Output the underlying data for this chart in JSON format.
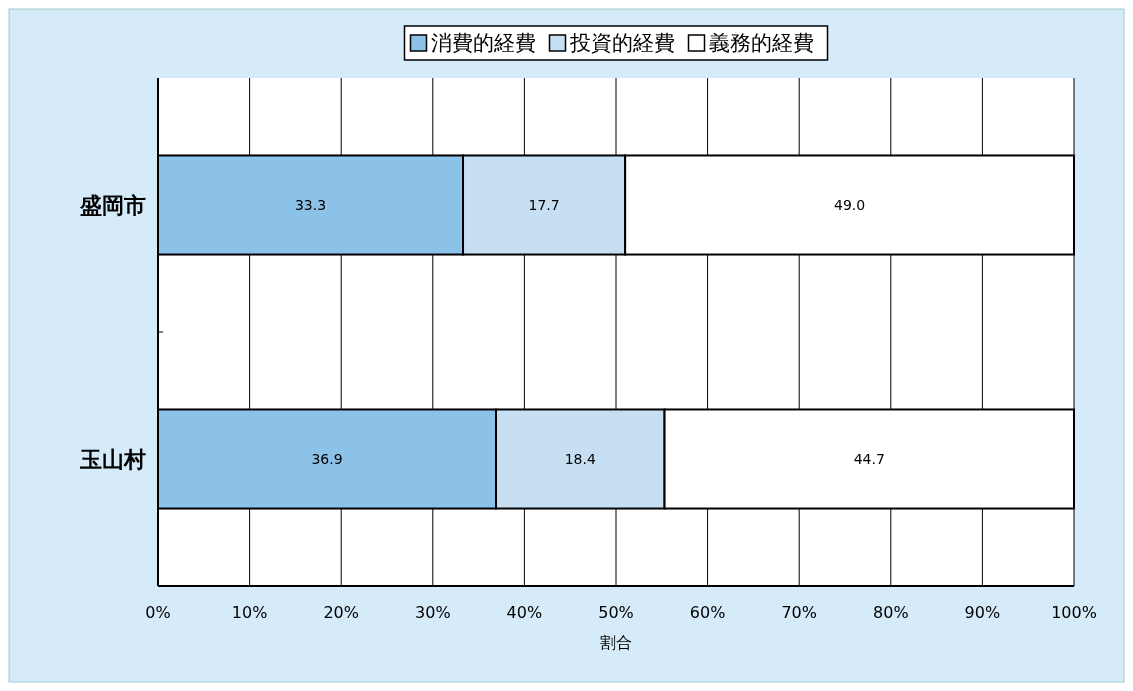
{
  "chart_data": {
    "type": "bar",
    "orientation": "horizontal",
    "stacked": true,
    "categories": [
      "盛岡市",
      "玉山村"
    ],
    "series": [
      {
        "name": "消費的経費",
        "color": "#8cc1e8",
        "values": [
          33.3,
          36.9
        ],
        "value_labels": [
          "33.3",
          "36.9"
        ]
      },
      {
        "name": "投資的経費",
        "color": "#c6dff2",
        "values": [
          17.7,
          18.4
        ],
        "value_labels": [
          "17.7",
          "18.4"
        ]
      },
      {
        "name": "義務的経費",
        "color": "#ffffff",
        "values": [
          49.0,
          44.7
        ],
        "value_labels": [
          "49.0",
          "44.7"
        ]
      }
    ],
    "xlim": [
      0,
      100
    ],
    "xticks": [
      {
        "value": 0,
        "label": "0%"
      },
      {
        "value": 10,
        "label": "10%"
      },
      {
        "value": 20,
        "label": "20%"
      },
      {
        "value": 30,
        "label": "30%"
      },
      {
        "value": 40,
        "label": "40%"
      },
      {
        "value": 50,
        "label": "50%"
      },
      {
        "value": 60,
        "label": "60%"
      },
      {
        "value": 70,
        "label": "70%"
      },
      {
        "value": 80,
        "label": "80%"
      },
      {
        "value": 90,
        "label": "90%"
      },
      {
        "value": 100,
        "label": "100%"
      }
    ],
    "xlabel": "割合",
    "grid": "x",
    "legend": "top"
  }
}
